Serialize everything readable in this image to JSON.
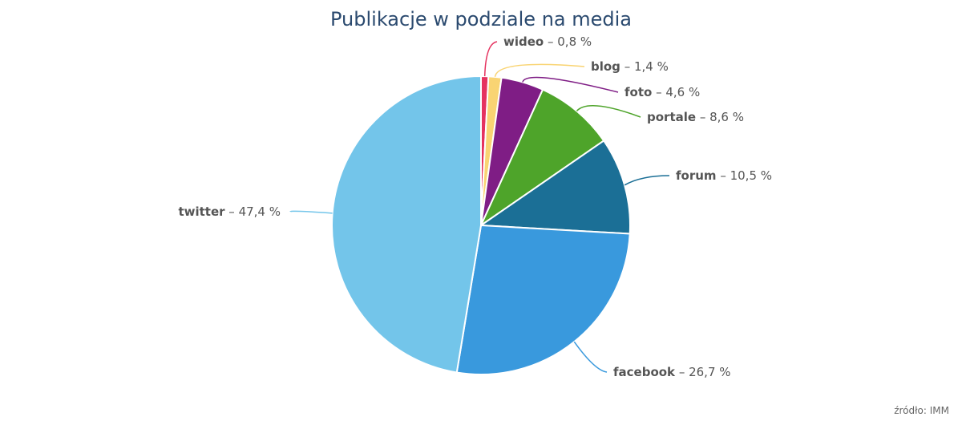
{
  "chart_data": {
    "type": "pie",
    "title": "Publikacje w podziale na media",
    "slices": [
      {
        "label": "wideo",
        "value": 0.8,
        "display": "0,8 %",
        "color": "#e5325f"
      },
      {
        "label": "blog",
        "value": 1.4,
        "display": "1,4 %",
        "color": "#f9d473"
      },
      {
        "label": "foto",
        "value": 4.6,
        "display": "4,6 %",
        "color": "#7f1d85"
      },
      {
        "label": "portale",
        "value": 8.6,
        "display": "8,6 %",
        "color": "#4ea42a"
      },
      {
        "label": "forum",
        "value": 10.5,
        "display": "10,5 %",
        "color": "#1b6f96"
      },
      {
        "label": "facebook",
        "value": 26.7,
        "display": "26,7 %",
        "color": "#3999dd"
      },
      {
        "label": "twitter",
        "value": 47.4,
        "display": "47,4 %",
        "color": "#73c5ea"
      }
    ],
    "source": "źródło: IMM"
  }
}
